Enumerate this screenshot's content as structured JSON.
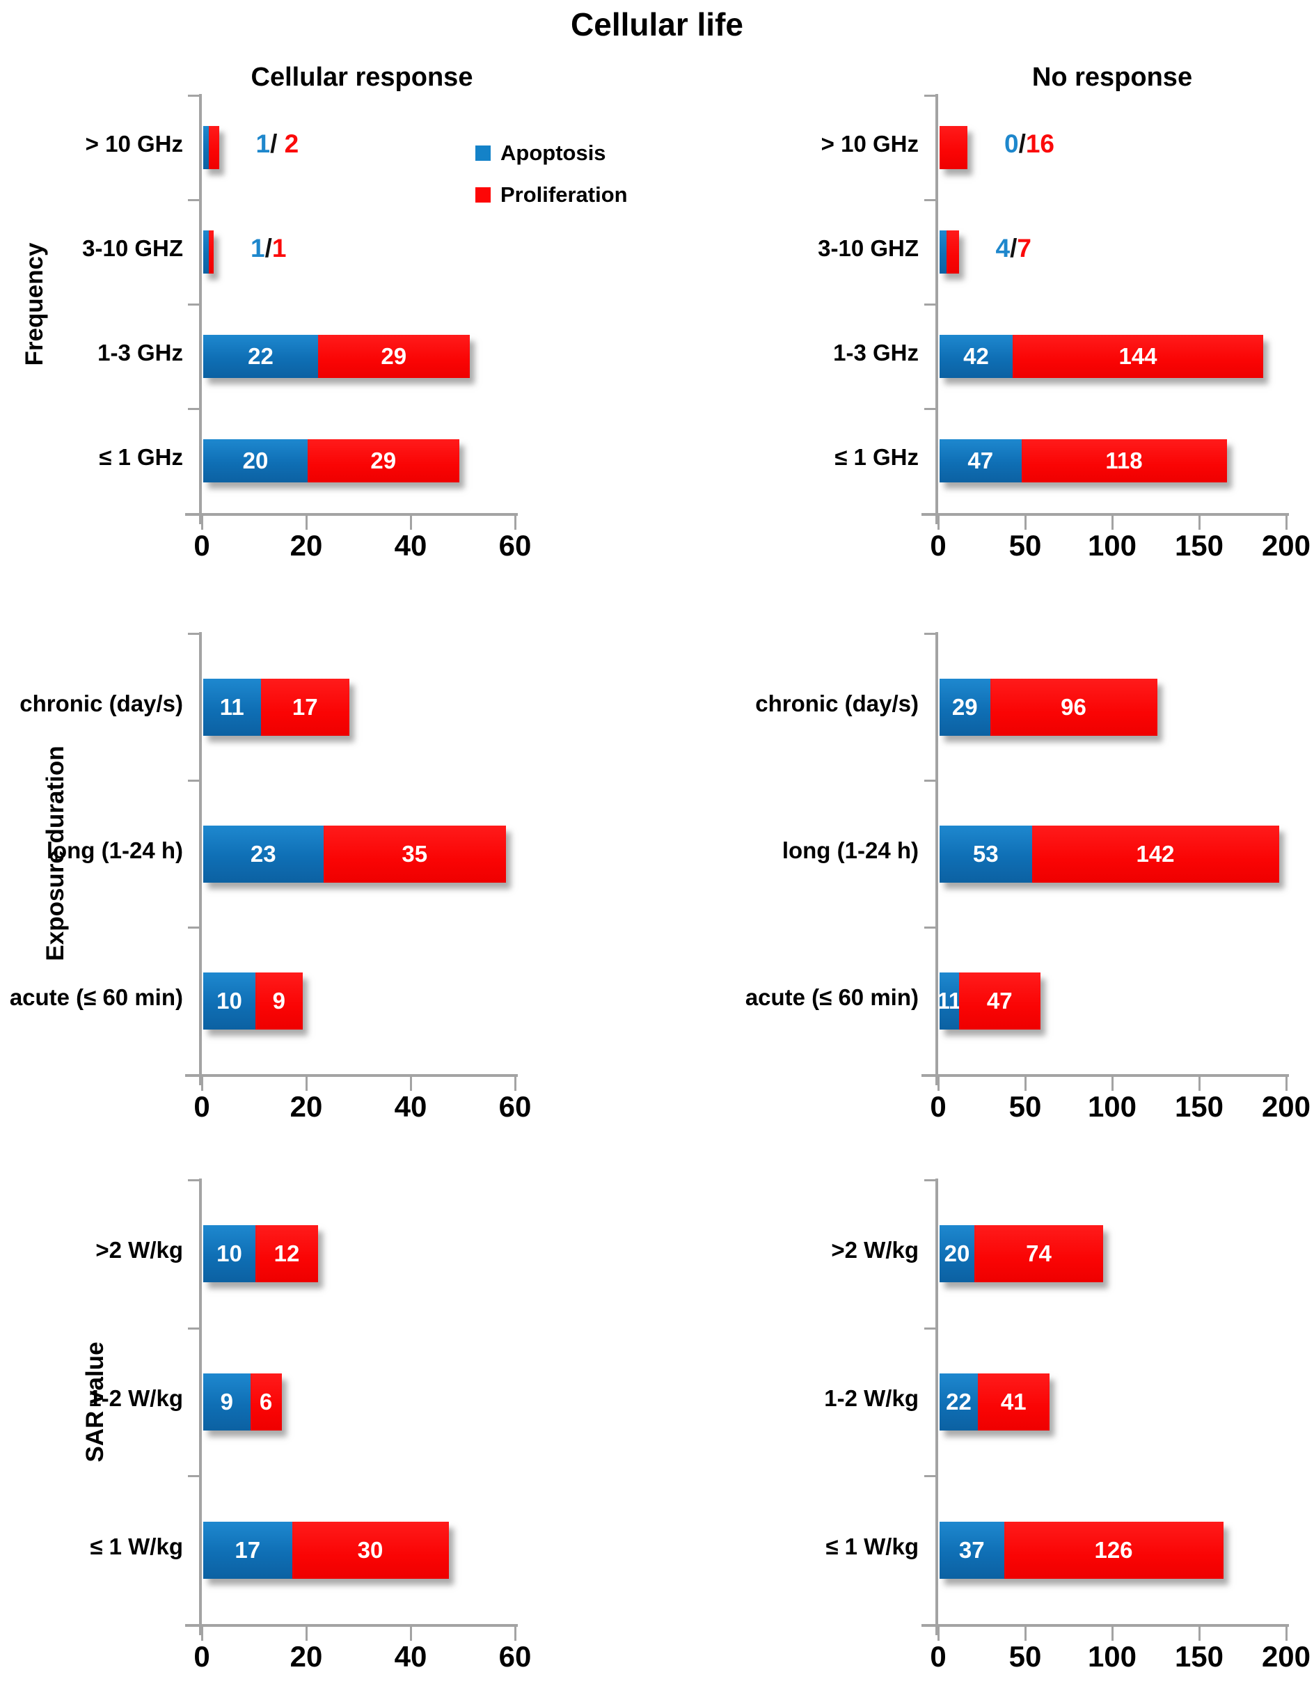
{
  "title": "Cellular life",
  "columns": [
    {
      "title": "Cellular response"
    },
    {
      "title": "No response"
    }
  ],
  "rows": [
    {
      "axis_label": "Frequency"
    },
    {
      "axis_label": "Exposure duration"
    },
    {
      "axis_label": "SAR value"
    }
  ],
  "legend": {
    "items": [
      {
        "label": "Apoptosis",
        "color": "#1482C8"
      },
      {
        "label": "Proliferation",
        "color": "#FD0606"
      }
    ]
  },
  "colors": {
    "apoptosis_bar": "#1173BC",
    "proliferation_bar": "#FB0404",
    "axis": "#A3A3A3",
    "outside_label_blue": "#1E87CC",
    "outside_label_red": "#FB0A0A",
    "bar_value_text": "#FFFFFF",
    "text": "#000000"
  },
  "chart_data": [
    {
      "id": "cellular-response-frequency",
      "type": "bar",
      "stacked": true,
      "orientation": "horizontal",
      "column_title": "Cellular response",
      "group_label": "Frequency",
      "categories": [
        "> 10 GHz",
        "3-10 GHZ",
        "1-3 GHz",
        "≤ 1 GHz"
      ],
      "series": [
        {
          "name": "Apoptosis",
          "values": [
            1,
            1,
            22,
            20
          ]
        },
        {
          "name": "Proliferation",
          "values": [
            2,
            1,
            29,
            29
          ]
        }
      ],
      "xlim": [
        0,
        60
      ],
      "xticks": [
        0,
        20,
        40,
        60
      ],
      "bar_labels": [
        {
          "mode": "outside",
          "blue": "1",
          "sep": "/ ",
          "red": "2"
        },
        {
          "mode": "outside",
          "blue": "1",
          "sep": "/",
          "red": "1"
        },
        {
          "mode": "inside"
        },
        {
          "mode": "inside"
        }
      ]
    },
    {
      "id": "no-response-frequency",
      "type": "bar",
      "stacked": true,
      "orientation": "horizontal",
      "column_title": "No response",
      "group_label": "Frequency",
      "categories": [
        "> 10 GHz",
        "3-10 GHZ",
        "1-3 GHz",
        "≤ 1 GHz"
      ],
      "series": [
        {
          "name": "Apoptosis",
          "values": [
            0,
            4,
            42,
            47
          ]
        },
        {
          "name": "Proliferation",
          "values": [
            16,
            7,
            144,
            118
          ]
        }
      ],
      "xlim": [
        0,
        200
      ],
      "xticks": [
        0,
        50,
        100,
        150,
        200
      ],
      "bar_labels": [
        {
          "mode": "outside",
          "blue": "0",
          "sep": "/",
          "red": "16"
        },
        {
          "mode": "outside",
          "blue": "4",
          "sep": "/",
          "red": "7"
        },
        {
          "mode": "inside"
        },
        {
          "mode": "inside"
        }
      ]
    },
    {
      "id": "cellular-response-exposure-duration",
      "type": "bar",
      "stacked": true,
      "orientation": "horizontal",
      "column_title": "Cellular response",
      "group_label": "Exposure duration",
      "categories": [
        "chronic (day/s)",
        "long (1-24 h)",
        "acute (≤ 60 min)"
      ],
      "series": [
        {
          "name": "Apoptosis",
          "values": [
            11,
            23,
            10
          ]
        },
        {
          "name": "Proliferation",
          "values": [
            17,
            35,
            9
          ]
        }
      ],
      "xlim": [
        0,
        60
      ],
      "xticks": [
        0,
        20,
        40,
        60
      ],
      "bar_labels": [
        {
          "mode": "inside"
        },
        {
          "mode": "inside"
        },
        {
          "mode": "inside"
        }
      ]
    },
    {
      "id": "no-response-exposure-duration",
      "type": "bar",
      "stacked": true,
      "orientation": "horizontal",
      "column_title": "No response",
      "group_label": "Exposure duration",
      "categories": [
        "chronic (day/s)",
        "long (1-24 h)",
        "acute (≤ 60 min)"
      ],
      "series": [
        {
          "name": "Apoptosis",
          "values": [
            29,
            53,
            11
          ]
        },
        {
          "name": "Proliferation",
          "values": [
            96,
            142,
            47
          ]
        }
      ],
      "xlim": [
        0,
        200
      ],
      "xticks": [
        0,
        50,
        100,
        150,
        200
      ],
      "bar_labels": [
        {
          "mode": "inside"
        },
        {
          "mode": "inside"
        },
        {
          "mode": "inside"
        }
      ]
    },
    {
      "id": "cellular-response-sar-value",
      "type": "bar",
      "stacked": true,
      "orientation": "horizontal",
      "column_title": "Cellular response",
      "group_label": "SAR value",
      "categories": [
        ">2 W/kg",
        "1-2 W/kg",
        "≤ 1 W/kg"
      ],
      "series": [
        {
          "name": "Apoptosis",
          "values": [
            10,
            9,
            17
          ]
        },
        {
          "name": "Proliferation",
          "values": [
            12,
            6,
            30
          ]
        }
      ],
      "xlim": [
        0,
        60
      ],
      "xticks": [
        0,
        20,
        40,
        60
      ],
      "bar_labels": [
        {
          "mode": "inside"
        },
        {
          "mode": "inside"
        },
        {
          "mode": "inside"
        }
      ]
    },
    {
      "id": "no-response-sar-value",
      "type": "bar",
      "stacked": true,
      "orientation": "horizontal",
      "column_title": "No response",
      "group_label": "SAR value",
      "categories": [
        ">2 W/kg",
        "1-2 W/kg",
        "≤ 1 W/kg"
      ],
      "series": [
        {
          "name": "Apoptosis",
          "values": [
            20,
            22,
            37
          ]
        },
        {
          "name": "Proliferation",
          "values": [
            74,
            41,
            126
          ]
        }
      ],
      "xlim": [
        0,
        200
      ],
      "xticks": [
        0,
        50,
        100,
        150,
        200
      ],
      "bar_labels": [
        {
          "mode": "inside"
        },
        {
          "mode": "inside"
        },
        {
          "mode": "inside"
        }
      ]
    }
  ]
}
